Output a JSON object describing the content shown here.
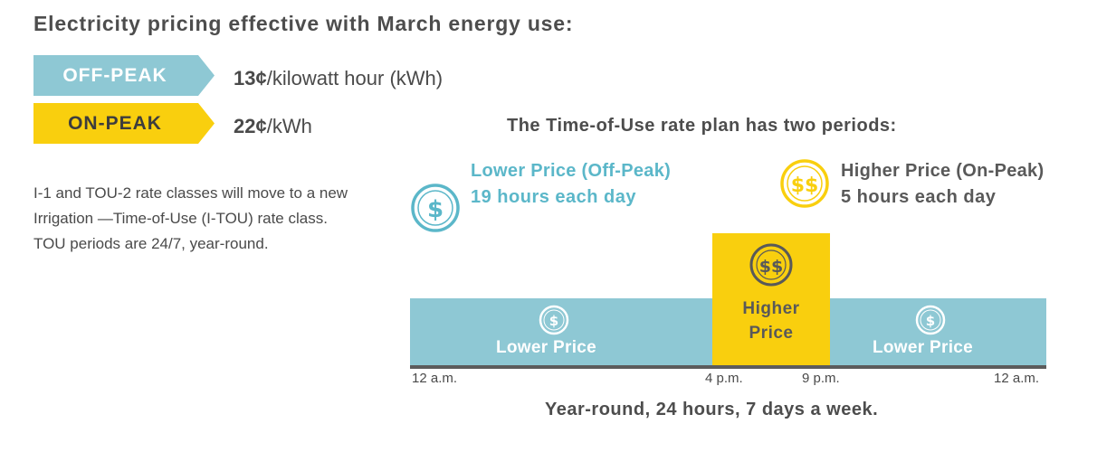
{
  "header": {
    "title": "Electricity pricing effective with March energy use:"
  },
  "rates": {
    "off_peak": {
      "label": "OFF-PEAK",
      "price_bold": "13¢",
      "price_rest": "/kilowatt hour (kWh)"
    },
    "on_peak": {
      "label": "ON-PEAK",
      "price_bold": "22¢",
      "price_rest": "/kWh"
    }
  },
  "description": "I-1 and TOU-2 rate classes will move to a new Irrigation —Time-of-Use (I-TOU) rate class. TOU periods are 24/7, year-round.",
  "plan": {
    "title": "The Time-of-Use rate plan has two periods:",
    "legend": {
      "lower": {
        "symbol": "$",
        "title": "Lower Price (Off-Peak)",
        "subtitle": "19 hours each day"
      },
      "higher": {
        "symbol": "$$",
        "title": "Higher Price (On-Peak)",
        "subtitle": "5 hours each day"
      }
    },
    "timeline": {
      "left_label": "Lower Price",
      "peak_label_line1": "Higher",
      "peak_label_line2": "Price",
      "right_label": "Lower Price",
      "left_symbol": "$",
      "peak_symbol": "$$",
      "right_symbol": "$",
      "ticks": [
        "12 a.m.",
        "4 p.m.",
        "9 p.m.",
        "12 a.m."
      ]
    },
    "footer": "Year-round, 24 hours, 7 days a week."
  },
  "colors": {
    "off_peak": "#8ec8d4",
    "on_peak": "#f9cf0e",
    "teal_text": "#5bb7c9",
    "text": "#4d4d4d"
  },
  "icons": {
    "lower": "dollar-circle-icon",
    "higher": "double-dollar-circle-icon"
  }
}
